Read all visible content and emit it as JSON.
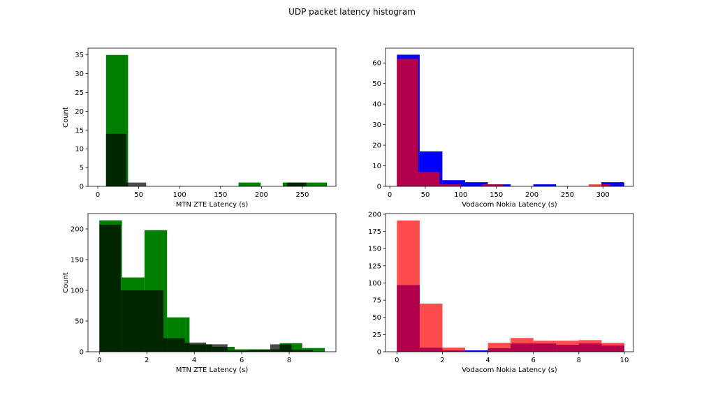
{
  "figure": {
    "title": "UDP packet latency histogram"
  },
  "chart_data": [
    {
      "type": "bar",
      "xlabel": "MTN ZTE Latency (s)",
      "ylabel": "Count",
      "xlim": [
        -12,
        291
      ],
      "ylim": [
        0,
        36.8
      ],
      "xticks": [
        0,
        50,
        100,
        150,
        200,
        250
      ],
      "yticks": [
        0,
        5,
        10,
        15,
        20,
        25,
        30,
        35
      ],
      "series": [
        {
          "color": "#008000",
          "opacity": 1.0,
          "bins": [
            [
              10,
              37,
              35
            ],
            [
              37,
              64,
              0
            ],
            [
              64,
              91,
              0
            ],
            [
              91,
              118,
              0
            ],
            [
              118,
              145,
              0
            ],
            [
              145,
              172,
              0
            ],
            [
              172,
              199,
              1
            ],
            [
              199,
              226,
              0
            ],
            [
              226,
              253,
              1
            ],
            [
              253,
              280,
              1
            ]
          ]
        },
        {
          "color": "#000000",
          "opacity": 0.7,
          "bins": [
            [
              10,
              35,
              14
            ],
            [
              35,
              59,
              1
            ],
            [
              59,
              84,
              0
            ],
            [
              84,
              108,
              0
            ],
            [
              108,
              133,
              0
            ],
            [
              133,
              157,
              0
            ],
            [
              157,
              182,
              0
            ],
            [
              182,
              206,
              0
            ],
            [
              206,
              231,
              0
            ],
            [
              231,
              255,
              1
            ]
          ]
        }
      ]
    },
    {
      "type": "bar",
      "xlabel": "Vodacom Nokia Latency (s)",
      "ylabel": "",
      "xlim": [
        -6,
        343
      ],
      "ylim": [
        0,
        67.2
      ],
      "xticks": [
        0,
        50,
        100,
        150,
        200,
        250,
        300
      ],
      "yticks": [
        0,
        10,
        20,
        30,
        40,
        50,
        60
      ],
      "series": [
        {
          "color": "#0000ff",
          "opacity": 1.0,
          "bins": [
            [
              10,
              42,
              64
            ],
            [
              42,
              74,
              17
            ],
            [
              74,
              106,
              3
            ],
            [
              106,
              138,
              2
            ],
            [
              138,
              170,
              1
            ],
            [
              170,
              202,
              0
            ],
            [
              202,
              234,
              1
            ],
            [
              234,
              266,
              0
            ],
            [
              266,
              298,
              0
            ],
            [
              298,
              330,
              2
            ]
          ]
        },
        {
          "color": "#ff0000",
          "opacity": 0.7,
          "bins": [
            [
              10,
              40,
              62
            ],
            [
              40,
              70,
              7
            ],
            [
              70,
              100,
              1
            ],
            [
              100,
              130,
              0
            ],
            [
              130,
              160,
              1
            ],
            [
              160,
              190,
              0
            ],
            [
              190,
              220,
              0
            ],
            [
              220,
              250,
              0
            ],
            [
              250,
              280,
              0
            ],
            [
              280,
              310,
              1
            ]
          ]
        }
      ]
    },
    {
      "type": "bar",
      "xlabel": "MTN ZTE Latency (s)",
      "ylabel": "Count",
      "xlim": [
        -0.48,
        9.97
      ],
      "ylim": [
        0,
        225
      ],
      "xticks": [
        0,
        2,
        4,
        6,
        8
      ],
      "yticks": [
        0,
        50,
        100,
        150,
        200
      ],
      "series": [
        {
          "color": "#008000",
          "opacity": 1.0,
          "bins": [
            [
              0,
              0.95,
              214
            ],
            [
              0.95,
              1.9,
              121
            ],
            [
              1.9,
              2.85,
              198
            ],
            [
              2.85,
              3.8,
              56
            ],
            [
              3.8,
              4.75,
              12
            ],
            [
              4.75,
              5.7,
              8
            ],
            [
              5.7,
              6.65,
              4
            ],
            [
              6.65,
              7.6,
              4
            ],
            [
              7.6,
              8.55,
              14
            ],
            [
              8.55,
              9.5,
              6
            ]
          ]
        },
        {
          "color": "#000000",
          "opacity": 0.7,
          "bins": [
            [
              0,
              0.9,
              207
            ],
            [
              0.9,
              1.8,
              100
            ],
            [
              1.8,
              2.7,
              100
            ],
            [
              2.7,
              3.6,
              22
            ],
            [
              3.6,
              4.5,
              15
            ],
            [
              4.5,
              5.4,
              12
            ],
            [
              5.4,
              6.3,
              2
            ],
            [
              6.3,
              7.2,
              3
            ],
            [
              7.2,
              8.1,
              12
            ],
            [
              8.1,
              9.0,
              3
            ]
          ]
        }
      ]
    },
    {
      "type": "bar",
      "xlabel": "Vodacom Nokia Latency (s)",
      "ylabel": "",
      "xlim": [
        -0.5,
        10.4
      ],
      "ylim": [
        0,
        201
      ],
      "xticks": [
        0,
        2,
        4,
        6,
        8,
        10
      ],
      "yticks": [
        0,
        25,
        50,
        75,
        100,
        125,
        150,
        175,
        200
      ],
      "series": [
        {
          "color": "#0000ff",
          "opacity": 1.0,
          "bins": [
            [
              0,
              1,
              97
            ],
            [
              1,
              2,
              6
            ],
            [
              2,
              3,
              2
            ],
            [
              3,
              4,
              2
            ],
            [
              4,
              5,
              5
            ],
            [
              5,
              6,
              12
            ],
            [
              6,
              7,
              12
            ],
            [
              7,
              8,
              10
            ],
            [
              8,
              9,
              12
            ],
            [
              9,
              10,
              9
            ]
          ]
        },
        {
          "color": "#ff0000",
          "opacity": 0.7,
          "bins": [
            [
              0,
              1,
              191
            ],
            [
              1,
              2,
              70
            ],
            [
              2,
              3,
              6
            ],
            [
              3,
              4,
              0
            ],
            [
              4,
              5,
              13
            ],
            [
              5,
              6,
              20
            ],
            [
              6,
              7,
              16
            ],
            [
              7,
              8,
              16
            ],
            [
              8,
              9,
              17
            ],
            [
              9,
              10,
              13
            ]
          ]
        }
      ]
    }
  ]
}
